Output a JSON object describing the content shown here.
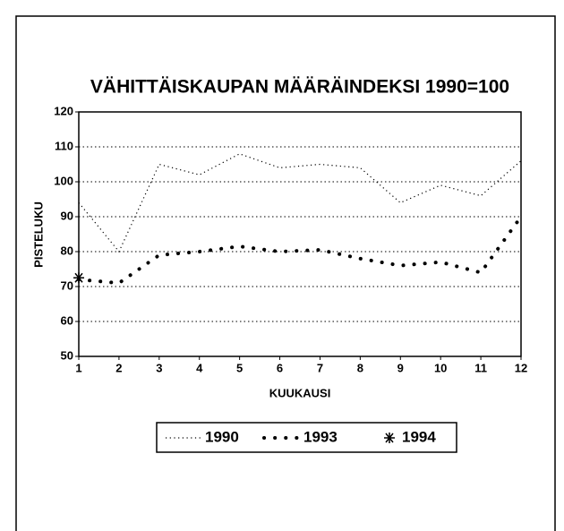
{
  "chart_data": {
    "type": "line",
    "title": "VÄHITTÄISKAUPAN MÄÄRÄINDEKSI 1990=100",
    "x_label": "KUUKAUSI",
    "y_label": "PISTELUKU",
    "x": [
      1,
      2,
      3,
      4,
      5,
      6,
      7,
      8,
      9,
      10,
      11,
      12
    ],
    "xlim": [
      1,
      12
    ],
    "xticks": [
      1,
      2,
      3,
      4,
      5,
      6,
      7,
      8,
      9,
      10,
      11,
      12
    ],
    "ylim": [
      50,
      120
    ],
    "yticks": [
      50,
      60,
      70,
      80,
      90,
      100,
      110,
      120
    ],
    "grid": true,
    "legend": "bottom",
    "series": [
      {
        "name": "1990",
        "color": "#000000",
        "line_style": "dotted",
        "values": [
          94,
          80,
          105,
          102,
          108,
          104,
          105,
          104,
          94,
          99,
          96,
          106
        ]
      },
      {
        "name": "1993",
        "color": "#000000",
        "line_style": "dots",
        "values": [
          72,
          71,
          79,
          80,
          81.5,
          80,
          80.5,
          78,
          76,
          77,
          74,
          90
        ]
      },
      {
        "name": "1994",
        "color": "#000000",
        "line_style": "none",
        "marker": "star",
        "values": [
          72.5,
          null,
          null,
          null,
          null,
          null,
          null,
          null,
          null,
          null,
          null,
          null
        ]
      }
    ]
  }
}
